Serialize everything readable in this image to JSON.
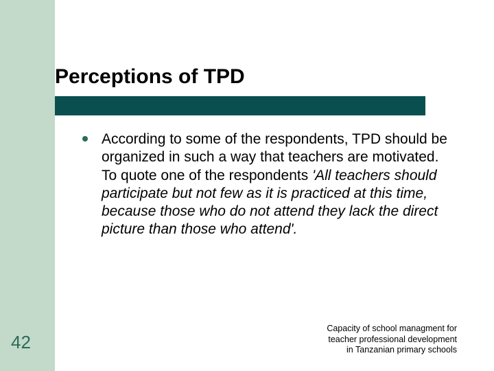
{
  "slide": {
    "title": "Perceptions of TPD",
    "bullet_body_plain": "According to some of the respondents, TPD should be organized in such a way that teachers are motivated.  To quote one of the respondents ",
    "bullet_body_italic": "'All teachers should participate but not few as it is practiced at this time, because those who do not attend they lack the direct picture than those who attend'.",
    "slide_number": "42",
    "footer_line1": "Capacity of school managment for",
    "footer_line2": "teacher professional development",
    "footer_line3": "in Tanzanian primary schools"
  },
  "style": {
    "accent_bg": "#c3d9c9",
    "title_bar_bg": "#0a4f4f",
    "bullet_color": "#2a6b5a",
    "slide_number_color": "#2a6b5a",
    "page_bg": "#ffffff",
    "title_fontsize": 30,
    "body_fontsize": 21,
    "footer_fontsize": 12.5,
    "slide_number_fontsize": 26
  }
}
